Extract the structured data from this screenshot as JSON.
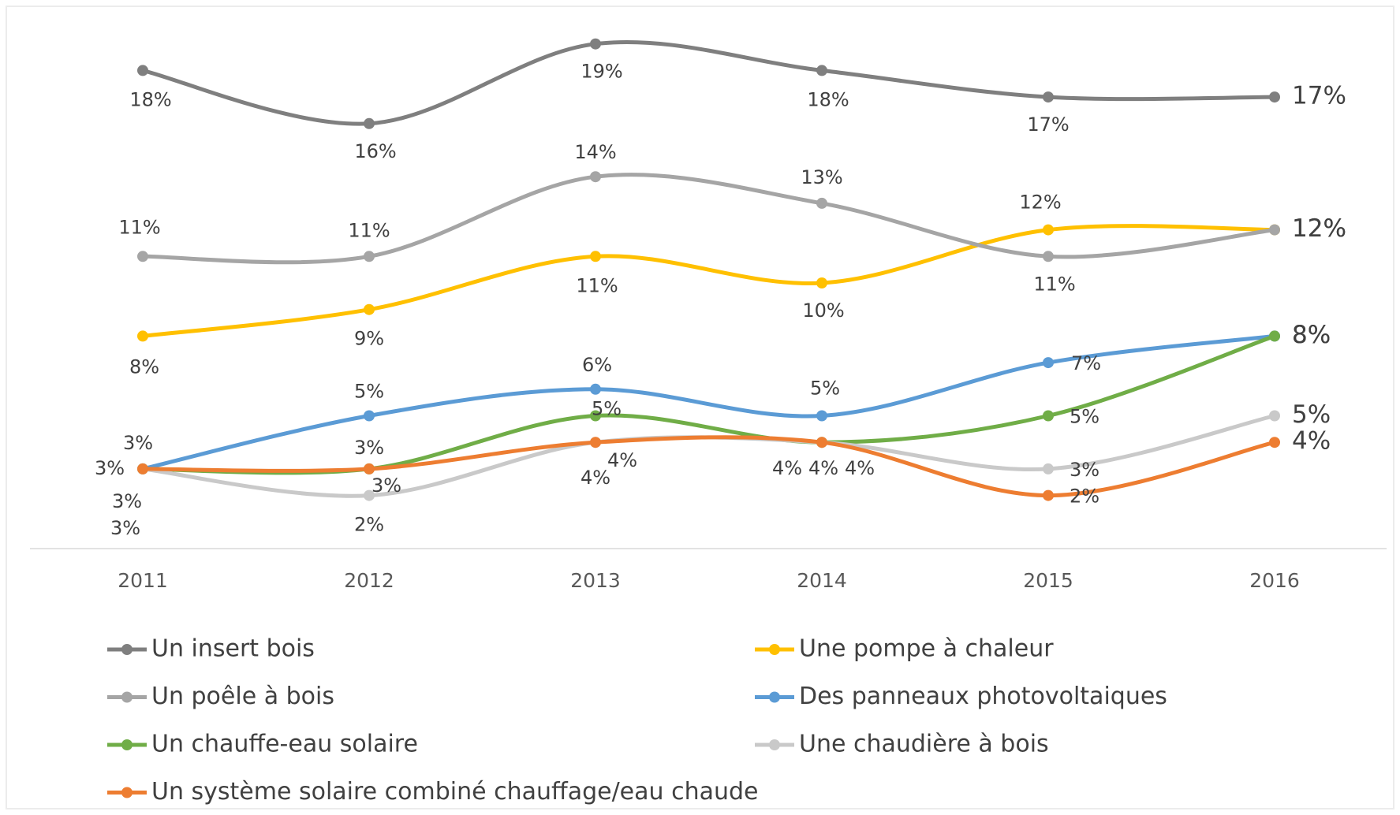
{
  "chart_data": {
    "type": "line",
    "categories": [
      "2011",
      "2012",
      "2013",
      "2014",
      "2015",
      "2016"
    ],
    "ylim": [
      0,
      20
    ],
    "series": [
      {
        "name": "Un insert bois",
        "color": "#7f7f7f",
        "values": [
          18,
          16,
          19,
          18,
          17,
          17
        ],
        "value_labels": [
          "18%",
          "16%",
          "19%",
          "18%",
          "17%",
          "17%"
        ]
      },
      {
        "name": "Une pompe à chaleur",
        "color": "#ffc000",
        "values": [
          8,
          9,
          11,
          10,
          12,
          12
        ],
        "value_labels": [
          "8%",
          "9%",
          "11%",
          "10%",
          "12%",
          "12%"
        ]
      },
      {
        "name": "Un poêle à bois",
        "color": "#a5a5a5",
        "values": [
          11,
          11,
          14,
          13,
          11,
          12
        ],
        "value_labels": [
          "11%",
          "11%",
          "14%",
          "13%",
          "11%",
          "12%"
        ]
      },
      {
        "name": "Des panneaux photovoltaiques",
        "color": "#5b9bd5",
        "values": [
          3,
          5,
          6,
          5,
          7,
          8
        ],
        "value_labels": [
          "3%",
          "5%",
          "6%",
          "5%",
          "7%",
          "8%"
        ]
      },
      {
        "name": "Un chauffe-eau solaire",
        "color": "#70ad47",
        "values": [
          3,
          3,
          5,
          4,
          5,
          8
        ],
        "value_labels": [
          "3%",
          "3%",
          "5%",
          "4%",
          "5%",
          "8%"
        ]
      },
      {
        "name": "Une chaudière à bois",
        "color": "#c9c9c9",
        "values": [
          3,
          2,
          4,
          4,
          3,
          5
        ],
        "value_labels": [
          "3%",
          "2%",
          "4%",
          "4%",
          "3%",
          "5%"
        ]
      },
      {
        "name": "Un système solaire combiné chauffage/eau chaude",
        "color": "#ed7d31",
        "values": [
          3,
          3,
          4,
          4,
          2,
          4
        ],
        "value_labels": [
          "3%",
          "3%",
          "4%",
          "4%",
          "2%",
          "4%"
        ]
      }
    ]
  }
}
